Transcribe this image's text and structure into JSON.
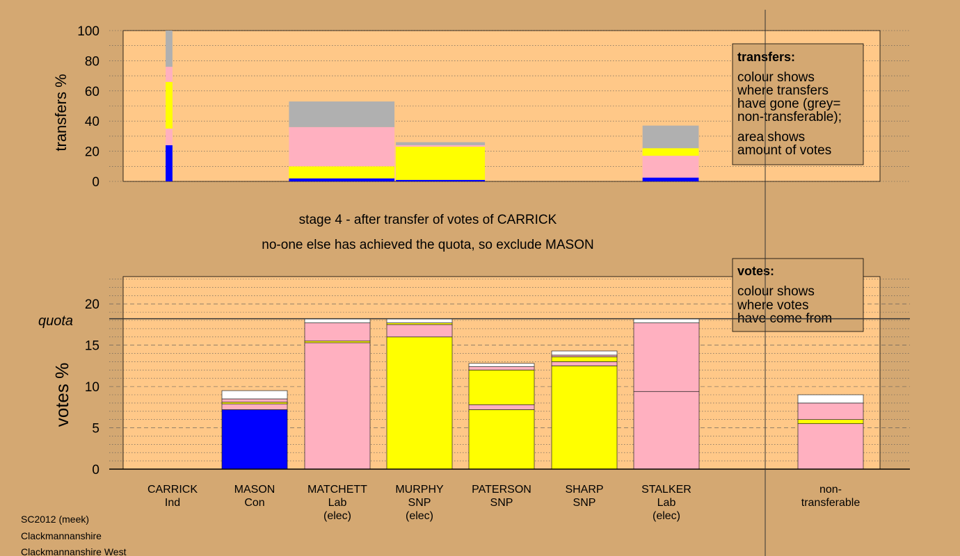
{
  "chart_data": [
    {
      "type": "bar",
      "stacked": true,
      "ylabel": "transfers %",
      "ylim": [
        0,
        100
      ],
      "yticks": [
        0,
        20,
        40,
        60,
        80,
        100
      ],
      "grid": "dotted",
      "segment_order_bottom_to_top": [
        "blue",
        "pink",
        "yellow",
        "pink",
        "grey"
      ],
      "bars": [
        {
          "segments": [
            {
              "color": "#0000ff",
              "from": 0,
              "to": 24
            },
            {
              "color": "#ffb0c0",
              "from": 24,
              "to": 35
            },
            {
              "color": "#ffff00",
              "from": 35,
              "to": 66
            },
            {
              "color": "#ffb0c0",
              "from": 66,
              "to": 76
            },
            {
              "color": "#b0b0b0",
              "from": 76,
              "to": 100
            }
          ],
          "col_from": 0.5,
          "col_to": 0.6
        },
        {
          "segments": [
            {
              "color": "#0000ff",
              "from": 0,
              "to": 2
            },
            {
              "color": "#ffff00",
              "from": 2,
              "to": 10
            },
            {
              "color": "#ffb0c0",
              "from": 10,
              "to": 36
            },
            {
              "color": "#b0b0b0",
              "from": 36,
              "to": 53
            }
          ],
          "col_from": 2.0,
          "col_to": 3.3
        },
        {
          "segments": [
            {
              "color": "#0000ff",
              "from": 0,
              "to": 1
            },
            {
              "color": "#ffff00",
              "from": 1,
              "to": 23
            },
            {
              "color": "#ffb0c0",
              "from": 23,
              "to": 24
            },
            {
              "color": "#b0b0b0",
              "from": 24,
              "to": 26
            }
          ],
          "col_from": 3.3,
          "col_to": 4.4
        },
        {
          "segments": [
            {
              "color": "#0000ff",
              "from": 0,
              "to": 2.5
            },
            {
              "color": "#ffb0c0",
              "from": 2.5,
              "to": 17
            },
            {
              "color": "#ffff00",
              "from": 17,
              "to": 22
            },
            {
              "color": "#b0b0b0",
              "from": 22,
              "to": 37
            }
          ],
          "col_from": 6.3,
          "col_to": 7.0
        }
      ],
      "legend": {
        "title": "transfers:",
        "lines_a": [
          "colour shows",
          "where transfers",
          "have gone (grey=",
          "non-transferable);"
        ],
        "lines_b": [
          "area shows",
          "amount of votes"
        ]
      }
    },
    {
      "type": "bar",
      "stacked": true,
      "ylabel": "votes %",
      "ylim": [
        0,
        23.3
      ],
      "yticks": [
        0,
        5,
        10,
        15,
        20
      ],
      "quota": 18.2,
      "quota_label": "quota",
      "categories": [
        {
          "name": "CARRICK",
          "line2": "Ind",
          "line3": ""
        },
        {
          "name": "MASON",
          "line2": "Con",
          "line3": ""
        },
        {
          "name": "MATCHETT",
          "line2": "Lab",
          "line3": "(elec)"
        },
        {
          "name": "MURPHY",
          "line2": "SNP",
          "line3": "(elec)"
        },
        {
          "name": "PATERSON",
          "line2": "SNP",
          "line3": ""
        },
        {
          "name": "SHARP",
          "line2": "SNP",
          "line3": ""
        },
        {
          "name": "STALKER",
          "line2": "Lab",
          "line3": "(elec)"
        },
        {
          "name": "non-",
          "line2": "transferable",
          "line3": ""
        }
      ],
      "bars": [
        {
          "segments": []
        },
        {
          "segments": [
            {
              "color": "#0000ff",
              "from": 0,
              "to": 7.2
            },
            {
              "color": "#ffb0c0",
              "from": 7.2,
              "to": 7.9
            },
            {
              "color": "#ffff00",
              "from": 7.9,
              "to": 8.1
            },
            {
              "color": "#ffb0c0",
              "from": 8.1,
              "to": 8.5
            },
            {
              "color": "#ffffff",
              "from": 8.5,
              "to": 9.5
            }
          ]
        },
        {
          "segments": [
            {
              "color": "#ffb0c0",
              "from": 0,
              "to": 15.3
            },
            {
              "color": "#ffff00",
              "from": 15.3,
              "to": 15.5
            },
            {
              "color": "#ffb0c0",
              "from": 15.5,
              "to": 17.7
            },
            {
              "color": "#ffffff",
              "from": 17.7,
              "to": 18.2
            }
          ]
        },
        {
          "segments": [
            {
              "color": "#ffff00",
              "from": 0,
              "to": 16
            },
            {
              "color": "#ffb0c0",
              "from": 16,
              "to": 17.5
            },
            {
              "color": "#ffff00",
              "from": 17.5,
              "to": 17.7
            },
            {
              "color": "#ffffff",
              "from": 17.7,
              "to": 18.2
            }
          ]
        },
        {
          "segments": [
            {
              "color": "#ffff00",
              "from": 0,
              "to": 7.2
            },
            {
              "color": "#ffb0c0",
              "from": 7.2,
              "to": 7.8
            },
            {
              "color": "#ffff00",
              "from": 7.8,
              "to": 12
            },
            {
              "color": "#ffb0c0",
              "from": 12,
              "to": 12.4
            },
            {
              "color": "#ffffff",
              "from": 12.4,
              "to": 12.8
            }
          ]
        },
        {
          "segments": [
            {
              "color": "#ffff00",
              "from": 0,
              "to": 12.5
            },
            {
              "color": "#ffb0c0",
              "from": 12.5,
              "to": 13
            },
            {
              "color": "#ffff00",
              "from": 13,
              "to": 13.6
            },
            {
              "color": "#ffb0c0",
              "from": 13.6,
              "to": 13.8
            },
            {
              "color": "#ffffff",
              "from": 13.8,
              "to": 14.3
            }
          ]
        },
        {
          "segments": [
            {
              "color": "#ffb0c0",
              "from": 0,
              "to": 9.4
            },
            {
              "color": "#ffb0c0",
              "from": 9.4,
              "to": 17.7
            },
            {
              "color": "#ffffff",
              "from": 17.7,
              "to": 18.2
            }
          ]
        },
        {
          "segments": [
            {
              "color": "#ffb0c0",
              "from": 0,
              "to": 5.5
            },
            {
              "color": "#ffff00",
              "from": 5.5,
              "to": 6
            },
            {
              "color": "#ffb0c0",
              "from": 6,
              "to": 8
            },
            {
              "color": "#ffffff",
              "from": 8,
              "to": 9
            }
          ]
        }
      ],
      "legend": {
        "title": "votes:",
        "lines": [
          "colour shows",
          "where votes",
          "have come from"
        ]
      }
    }
  ],
  "stage_text": "stage 4 - after transfer of votes of CARRICK",
  "exclude_text": "no-one else has achieved the quota, so exclude MASON",
  "footer": {
    "line1": "SC2012 (meek)",
    "line2": "Clackmannanshire",
    "line3": "Clackmannanshire West"
  },
  "colors": {
    "background": "#d4a872",
    "plot_area": "#ffc888",
    "legend_box": "#d4a872"
  }
}
